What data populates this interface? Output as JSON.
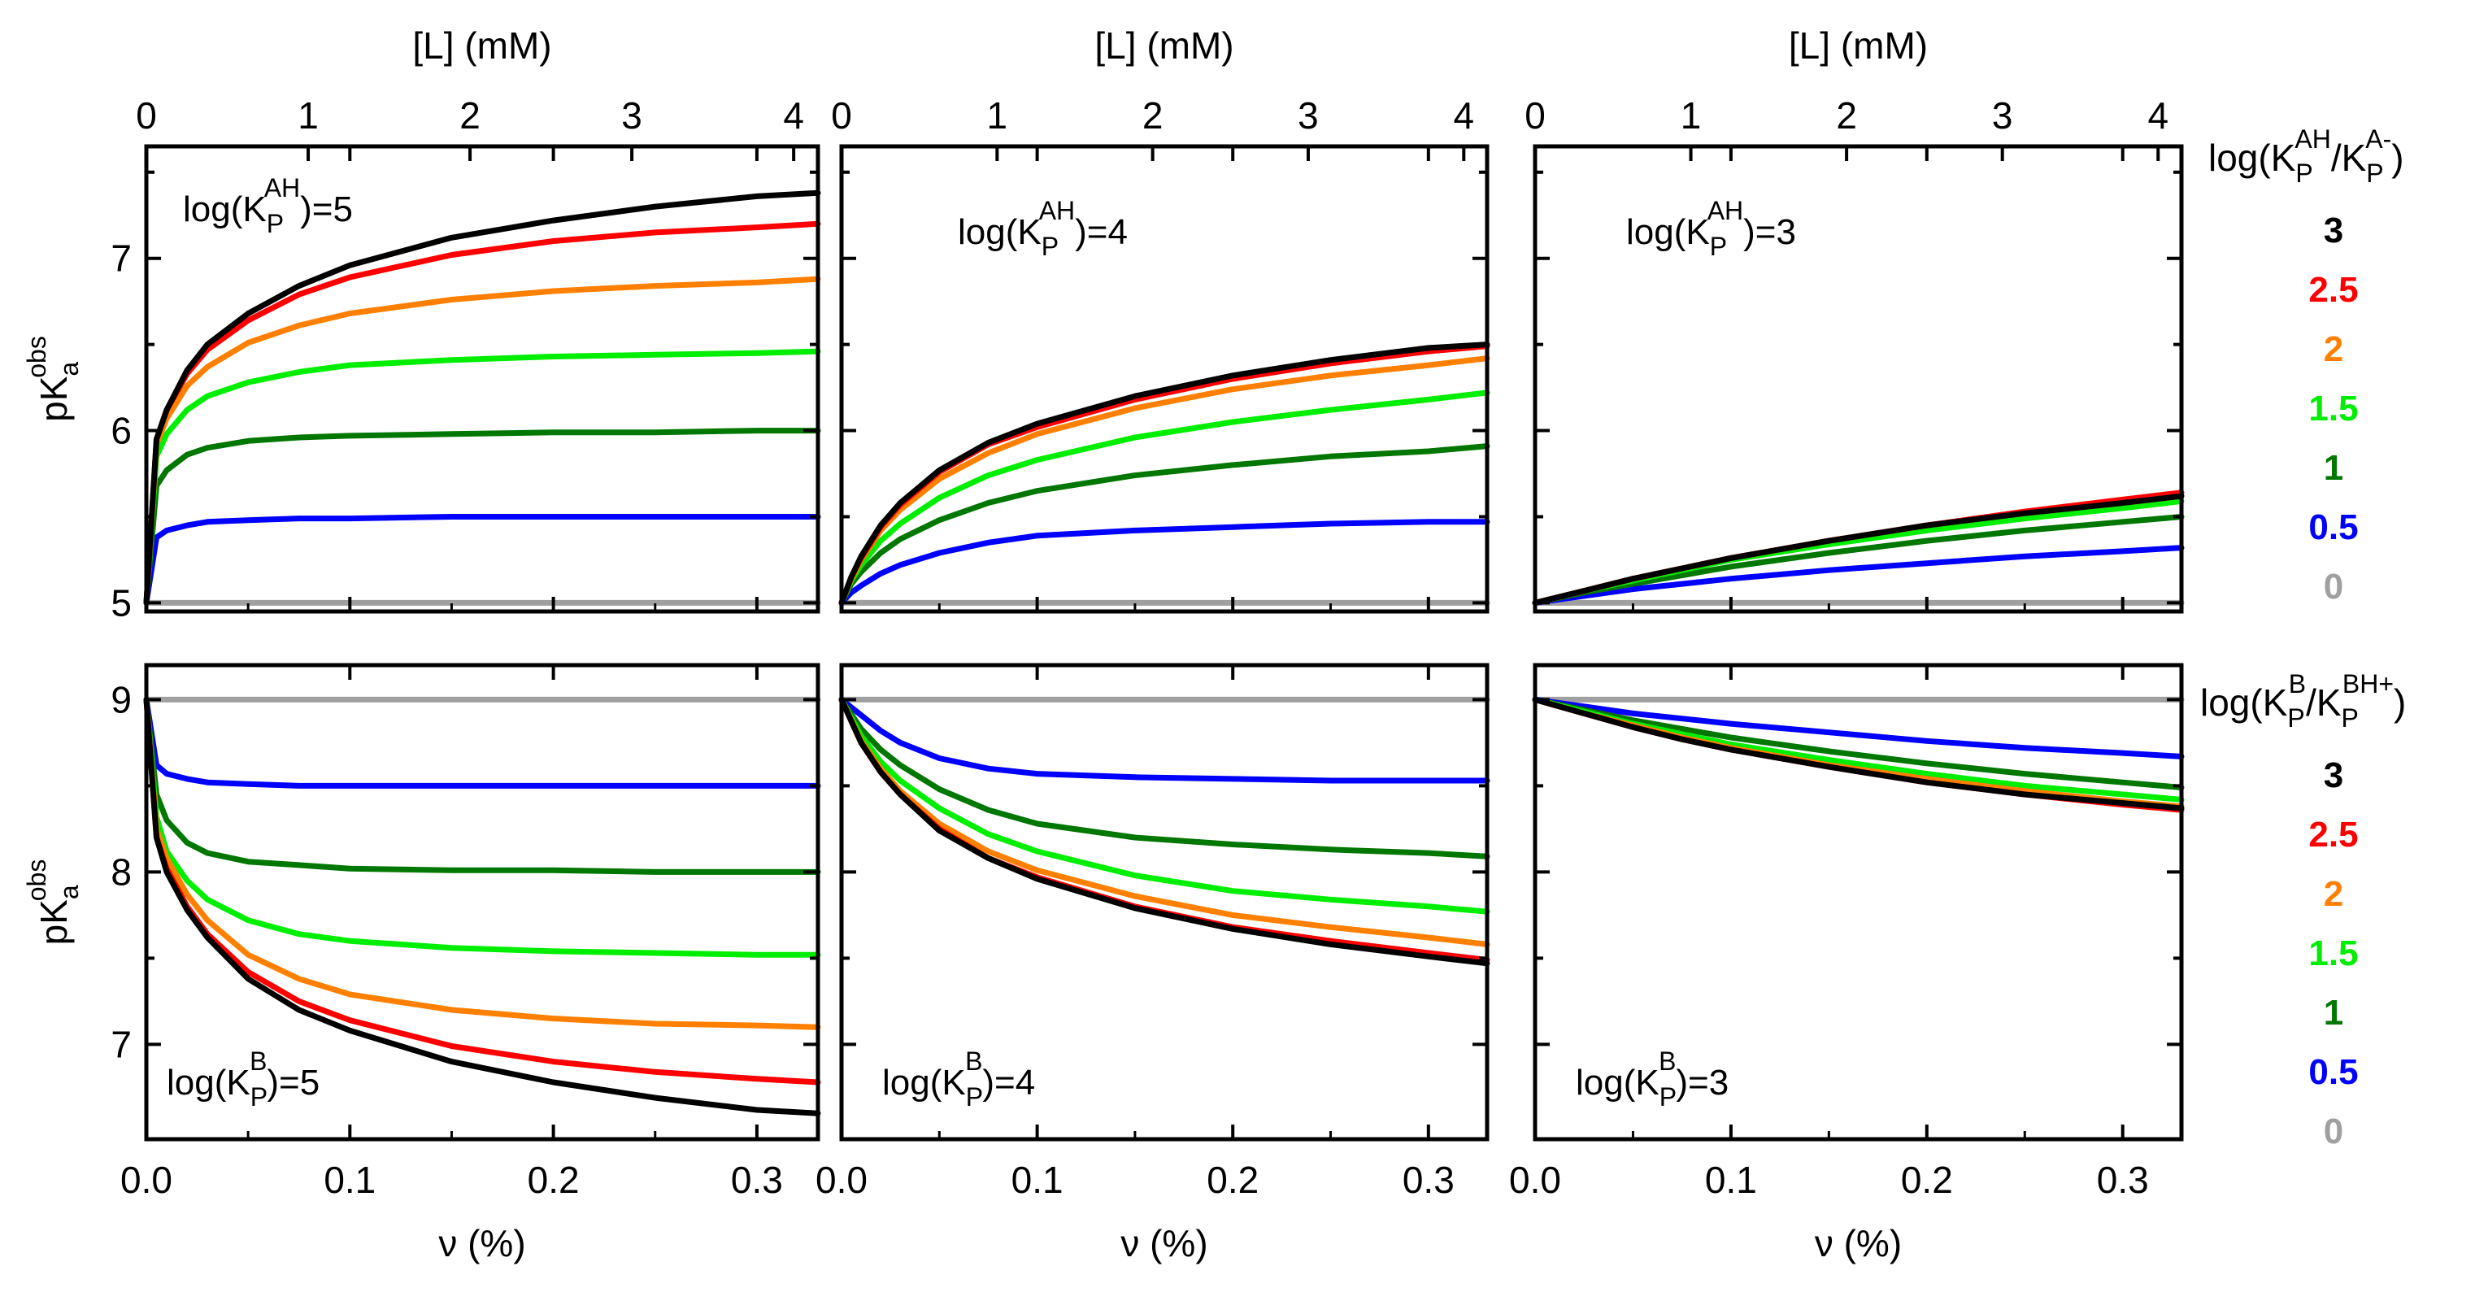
{
  "chart_data": [
    {
      "type": "line",
      "id": "top-left",
      "xlabel": "ν (%)",
      "x2label": "[L] (mM)",
      "ylabel": "pKa obs",
      "xlim": [
        0,
        0.33
      ],
      "ylim": [
        4.95,
        7.65
      ],
      "xticks": [
        "0.0",
        "0.1",
        "0.2",
        "0.3"
      ],
      "x2ticks": [
        "0",
        "1",
        "2",
        "3",
        "4"
      ],
      "yticks": [
        "5",
        "6",
        "7"
      ],
      "annotation": {
        "main": "log(K",
        "sub": "P",
        "sup": "AH",
        "tail": ")=5"
      },
      "x": [
        0,
        0.005,
        0.01,
        0.02,
        0.03,
        0.05,
        0.075,
        0.1,
        0.15,
        0.2,
        0.25,
        0.3,
        0.33
      ],
      "series": [
        {
          "name": "3",
          "color": "#000000",
          "values": [
            5.0,
            5.95,
            6.12,
            6.35,
            6.5,
            6.68,
            6.84,
            6.96,
            7.12,
            7.22,
            7.3,
            7.36,
            7.38
          ]
        },
        {
          "name": "2.5",
          "color": "#ff0000",
          "values": [
            5.0,
            5.95,
            6.12,
            6.33,
            6.47,
            6.64,
            6.79,
            6.89,
            7.02,
            7.1,
            7.15,
            7.18,
            7.2
          ]
        },
        {
          "name": "2",
          "color": "#ff8000",
          "values": [
            5.0,
            5.92,
            6.07,
            6.26,
            6.37,
            6.51,
            6.61,
            6.68,
            6.76,
            6.81,
            6.84,
            6.86,
            6.88
          ]
        },
        {
          "name": "1.5",
          "color": "#00ee00",
          "values": [
            5.0,
            5.85,
            5.98,
            6.12,
            6.2,
            6.28,
            6.34,
            6.38,
            6.41,
            6.43,
            6.44,
            6.45,
            6.46
          ]
        },
        {
          "name": "1",
          "color": "#007700",
          "values": [
            5.0,
            5.68,
            5.77,
            5.86,
            5.9,
            5.94,
            5.96,
            5.97,
            5.98,
            5.99,
            5.99,
            6.0,
            6.0
          ]
        },
        {
          "name": "0.5",
          "color": "#0000ff",
          "values": [
            5.0,
            5.38,
            5.42,
            5.45,
            5.47,
            5.48,
            5.49,
            5.49,
            5.5,
            5.5,
            5.5,
            5.5,
            5.5
          ]
        },
        {
          "name": "0",
          "color": "#a0a0a0",
          "values": [
            5.0,
            5.0,
            5.0,
            5.0,
            5.0,
            5.0,
            5.0,
            5.0,
            5.0,
            5.0,
            5.0,
            5.0,
            5.0
          ]
        }
      ]
    },
    {
      "type": "line",
      "id": "top-middle",
      "xlabel": "ν (%)",
      "x2label": "[L] (mM)",
      "xlim": [
        0,
        0.33
      ],
      "ylim": [
        4.95,
        7.65
      ],
      "xticks": [
        "0.0",
        "0.1",
        "0.2",
        "0.3"
      ],
      "x2ticks": [
        "0",
        "1",
        "2",
        "3",
        "4"
      ],
      "annotation": {
        "main": "log(K",
        "sub": "P",
        "sup": "AH",
        "tail": ")=4"
      },
      "x": [
        0,
        0.005,
        0.01,
        0.02,
        0.03,
        0.05,
        0.075,
        0.1,
        0.15,
        0.2,
        0.25,
        0.3,
        0.33
      ],
      "series": [
        {
          "name": "3",
          "color": "#000000",
          "values": [
            5.0,
            5.15,
            5.27,
            5.45,
            5.58,
            5.77,
            5.93,
            6.04,
            6.2,
            6.32,
            6.41,
            6.48,
            6.5
          ]
        },
        {
          "name": "2.5",
          "color": "#ff0000",
          "values": [
            5.0,
            5.15,
            5.26,
            5.44,
            5.57,
            5.76,
            5.92,
            6.02,
            6.18,
            6.3,
            6.39,
            6.46,
            6.49
          ]
        },
        {
          "name": "2",
          "color": "#ff8000",
          "values": [
            5.0,
            5.14,
            5.25,
            5.42,
            5.54,
            5.72,
            5.87,
            5.98,
            6.13,
            6.24,
            6.32,
            6.38,
            6.42
          ]
        },
        {
          "name": "1.5",
          "color": "#00ee00",
          "values": [
            5.0,
            5.13,
            5.22,
            5.36,
            5.46,
            5.61,
            5.74,
            5.83,
            5.96,
            6.05,
            6.12,
            6.18,
            6.22
          ]
        },
        {
          "name": "1",
          "color": "#007700",
          "values": [
            5.0,
            5.11,
            5.18,
            5.29,
            5.37,
            5.48,
            5.58,
            5.65,
            5.74,
            5.8,
            5.85,
            5.88,
            5.91
          ]
        },
        {
          "name": "0.5",
          "color": "#0000ff",
          "values": [
            5.0,
            5.06,
            5.1,
            5.17,
            5.22,
            5.29,
            5.35,
            5.39,
            5.42,
            5.44,
            5.46,
            5.47,
            5.47
          ]
        },
        {
          "name": "0",
          "color": "#a0a0a0",
          "values": [
            5.0,
            5.0,
            5.0,
            5.0,
            5.0,
            5.0,
            5.0,
            5.0,
            5.0,
            5.0,
            5.0,
            5.0,
            5.0
          ]
        }
      ]
    },
    {
      "type": "line",
      "id": "top-right",
      "xlabel": "ν (%)",
      "x2label": "[L] (mM)",
      "xlim": [
        0,
        0.33
      ],
      "ylim": [
        4.95,
        7.65
      ],
      "xticks": [
        "0.0",
        "0.1",
        "0.2",
        "0.3"
      ],
      "x2ticks": [
        "0",
        "1",
        "2",
        "3",
        "4"
      ],
      "annotation": {
        "main": "log(K",
        "sub": "P",
        "sup": "AH",
        "tail": ")=3"
      },
      "x": [
        0,
        0.025,
        0.05,
        0.075,
        0.1,
        0.15,
        0.2,
        0.25,
        0.3,
        0.33
      ],
      "series": [
        {
          "name": "3",
          "color": "#000000",
          "values": [
            5.0,
            5.07,
            5.14,
            5.2,
            5.26,
            5.36,
            5.45,
            5.52,
            5.58,
            5.62
          ]
        },
        {
          "name": "2.5",
          "color": "#ff0000",
          "values": [
            5.0,
            5.07,
            5.14,
            5.2,
            5.26,
            5.36,
            5.45,
            5.53,
            5.6,
            5.64
          ]
        },
        {
          "name": "2",
          "color": "#ff8000",
          "values": [
            5.0,
            5.07,
            5.14,
            5.2,
            5.26,
            5.36,
            5.45,
            5.52,
            5.58,
            5.62
          ]
        },
        {
          "name": "1.5",
          "color": "#00ee00",
          "values": [
            5.0,
            5.07,
            5.13,
            5.19,
            5.25,
            5.34,
            5.42,
            5.49,
            5.55,
            5.59
          ]
        },
        {
          "name": "1",
          "color": "#007700",
          "values": [
            5.0,
            5.06,
            5.11,
            5.16,
            5.21,
            5.29,
            5.36,
            5.42,
            5.47,
            5.5
          ]
        },
        {
          "name": "0.5",
          "color": "#0000ff",
          "values": [
            5.0,
            5.04,
            5.08,
            5.11,
            5.14,
            5.19,
            5.23,
            5.27,
            5.3,
            5.32
          ]
        },
        {
          "name": "0",
          "color": "#a0a0a0",
          "values": [
            5.0,
            5.0,
            5.0,
            5.0,
            5.0,
            5.0,
            5.0,
            5.0,
            5.0,
            5.0
          ]
        }
      ]
    },
    {
      "type": "line",
      "id": "bottom-left",
      "xlabel": "ν (%)",
      "ylabel": "pKa obs",
      "xlim": [
        0,
        0.33
      ],
      "ylim": [
        6.45,
        9.2
      ],
      "xticks": [
        "0.0",
        "0.1",
        "0.2",
        "0.3"
      ],
      "yticks": [
        "7",
        "8",
        "9"
      ],
      "annotation": {
        "main": "log(K",
        "sub": "P",
        "sup": "B",
        "tail": ")=5"
      },
      "x": [
        0,
        0.005,
        0.01,
        0.02,
        0.03,
        0.05,
        0.075,
        0.1,
        0.15,
        0.2,
        0.25,
        0.3,
        0.33
      ],
      "series": [
        {
          "name": "3",
          "color": "#000000",
          "values": [
            9.0,
            8.2,
            8.0,
            7.78,
            7.62,
            7.38,
            7.2,
            7.08,
            6.9,
            6.78,
            6.69,
            6.62,
            6.6
          ]
        },
        {
          "name": "2.5",
          "color": "#ff0000",
          "values": [
            9.0,
            8.2,
            8.02,
            7.8,
            7.64,
            7.42,
            7.25,
            7.14,
            6.99,
            6.9,
            6.84,
            6.8,
            6.78
          ]
        },
        {
          "name": "2",
          "color": "#ff8000",
          "values": [
            9.0,
            8.25,
            8.08,
            7.87,
            7.72,
            7.52,
            7.38,
            7.29,
            7.2,
            7.15,
            7.12,
            7.11,
            7.1
          ]
        },
        {
          "name": "1.5",
          "color": "#00ee00",
          "values": [
            9.0,
            8.32,
            8.12,
            7.95,
            7.84,
            7.72,
            7.64,
            7.6,
            7.56,
            7.54,
            7.53,
            7.52,
            7.52
          ]
        },
        {
          "name": "1",
          "color": "#007700",
          "values": [
            9.0,
            8.45,
            8.3,
            8.17,
            8.11,
            8.06,
            8.04,
            8.02,
            8.01,
            8.01,
            8.0,
            8.0,
            8.0
          ]
        },
        {
          "name": "0.5",
          "color": "#0000ff",
          "values": [
            9.0,
            8.62,
            8.57,
            8.54,
            8.52,
            8.51,
            8.5,
            8.5,
            8.5,
            8.5,
            8.5,
            8.5,
            8.5
          ]
        },
        {
          "name": "0",
          "color": "#a0a0a0",
          "values": [
            9.0,
            9.0,
            9.0,
            9.0,
            9.0,
            9.0,
            9.0,
            9.0,
            9.0,
            9.0,
            9.0,
            9.0,
            9.0
          ]
        }
      ]
    },
    {
      "type": "line",
      "id": "bottom-middle",
      "xlabel": "ν (%)",
      "xlim": [
        0,
        0.33
      ],
      "ylim": [
        6.45,
        9.2
      ],
      "xticks": [
        "0.0",
        "0.1",
        "0.2",
        "0.3"
      ],
      "annotation": {
        "main": "log(K",
        "sub": "P",
        "sup": "B",
        "tail": ")=4"
      },
      "x": [
        0,
        0.01,
        0.02,
        0.03,
        0.05,
        0.075,
        0.1,
        0.15,
        0.2,
        0.25,
        0.3,
        0.33
      ],
      "series": [
        {
          "name": "3",
          "color": "#000000",
          "values": [
            9.0,
            8.75,
            8.58,
            8.45,
            8.24,
            8.08,
            7.96,
            7.79,
            7.67,
            7.58,
            7.51,
            7.47
          ]
        },
        {
          "name": "2.5",
          "color": "#ff0000",
          "values": [
            9.0,
            8.75,
            8.58,
            8.45,
            8.25,
            8.08,
            7.97,
            7.8,
            7.68,
            7.6,
            7.53,
            7.49
          ]
        },
        {
          "name": "2",
          "color": "#ff8000",
          "values": [
            9.0,
            8.76,
            8.6,
            8.47,
            8.28,
            8.12,
            8.01,
            7.86,
            7.75,
            7.68,
            7.62,
            7.58
          ]
        },
        {
          "name": "1.5",
          "color": "#00ee00",
          "values": [
            9.0,
            8.79,
            8.64,
            8.53,
            8.37,
            8.22,
            8.12,
            7.98,
            7.89,
            7.84,
            7.8,
            7.77
          ]
        },
        {
          "name": "1",
          "color": "#007700",
          "values": [
            9.0,
            8.83,
            8.71,
            8.62,
            8.48,
            8.36,
            8.28,
            8.2,
            8.16,
            8.13,
            8.11,
            8.09
          ]
        },
        {
          "name": "0.5",
          "color": "#0000ff",
          "values": [
            9.0,
            8.91,
            8.82,
            8.75,
            8.66,
            8.6,
            8.57,
            8.55,
            8.54,
            8.53,
            8.53,
            8.53
          ]
        },
        {
          "name": "0",
          "color": "#a0a0a0",
          "values": [
            9.0,
            9.0,
            9.0,
            9.0,
            9.0,
            9.0,
            9.0,
            9.0,
            9.0,
            9.0,
            9.0,
            9.0
          ]
        }
      ]
    },
    {
      "type": "line",
      "id": "bottom-right",
      "xlabel": "ν (%)",
      "xlim": [
        0,
        0.33
      ],
      "ylim": [
        6.45,
        9.2
      ],
      "xticks": [
        "0.0",
        "0.1",
        "0.2",
        "0.3"
      ],
      "annotation": {
        "main": "log(K",
        "sub": "P",
        "sup": "B",
        "tail": ")=3"
      },
      "x": [
        0,
        0.025,
        0.05,
        0.075,
        0.1,
        0.15,
        0.2,
        0.25,
        0.3,
        0.33
      ],
      "series": [
        {
          "name": "3",
          "color": "#000000",
          "values": [
            9.0,
            8.92,
            8.84,
            8.77,
            8.71,
            8.61,
            8.52,
            8.45,
            8.4,
            8.37
          ]
        },
        {
          "name": "2.5",
          "color": "#ff0000",
          "values": [
            9.0,
            8.92,
            8.84,
            8.77,
            8.71,
            8.61,
            8.52,
            8.45,
            8.39,
            8.36
          ]
        },
        {
          "name": "2",
          "color": "#ff8000",
          "values": [
            9.0,
            8.92,
            8.85,
            8.78,
            8.72,
            8.62,
            8.54,
            8.47,
            8.41,
            8.38
          ]
        },
        {
          "name": "1.5",
          "color": "#00ee00",
          "values": [
            9.0,
            8.93,
            8.86,
            8.8,
            8.74,
            8.65,
            8.57,
            8.5,
            8.45,
            8.42
          ]
        },
        {
          "name": "1",
          "color": "#007700",
          "values": [
            9.0,
            8.94,
            8.88,
            8.83,
            8.78,
            8.7,
            8.63,
            8.57,
            8.52,
            8.49
          ]
        },
        {
          "name": "0.5",
          "color": "#0000ff",
          "values": [
            9.0,
            8.96,
            8.92,
            8.89,
            8.86,
            8.81,
            8.76,
            8.72,
            8.69,
            8.67
          ]
        },
        {
          "name": "0",
          "color": "#a0a0a0",
          "values": [
            9.0,
            9.0,
            9.0,
            9.0,
            9.0,
            9.0,
            9.0,
            9.0,
            9.0,
            9.0
          ]
        }
      ]
    }
  ],
  "legends": [
    {
      "id": "legend-top",
      "title": {
        "prefix": "log(K",
        "sup1": "AH",
        "sub1": "P",
        "mid": "/K",
        "sup2": "A-",
        "sub2": "P",
        "suffix": ")"
      },
      "entries": [
        {
          "label": "3",
          "color": "#000000"
        },
        {
          "label": "2.5",
          "color": "#ff0000"
        },
        {
          "label": "2",
          "color": "#ff8000"
        },
        {
          "label": "1.5",
          "color": "#00ee00"
        },
        {
          "label": "1",
          "color": "#007700"
        },
        {
          "label": "0.5",
          "color": "#0000ff"
        },
        {
          "label": "0",
          "color": "#a0a0a0"
        }
      ]
    },
    {
      "id": "legend-bottom",
      "title": {
        "prefix": "log(K",
        "sup1": "B",
        "sub1": "P",
        "mid": "/K",
        "sup2": "BH+",
        "sub2": "P",
        "suffix": ")"
      },
      "entries": [
        {
          "label": "3",
          "color": "#000000"
        },
        {
          "label": "2.5",
          "color": "#ff0000"
        },
        {
          "label": "2",
          "color": "#ff8000"
        },
        {
          "label": "1.5",
          "color": "#00ee00"
        },
        {
          "label": "1",
          "color": "#007700"
        },
        {
          "label": "0.5",
          "color": "#0000ff"
        },
        {
          "label": "0",
          "color": "#a0a0a0"
        }
      ]
    }
  ]
}
